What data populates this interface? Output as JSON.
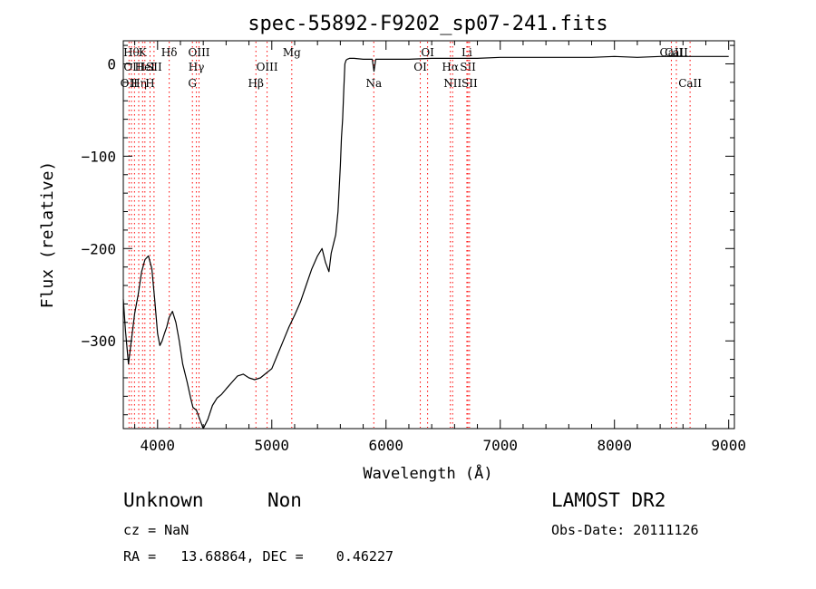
{
  "chart_data": {
    "type": "line",
    "title": "spec-55892-F9202_sp07-241.fits",
    "xlabel": "Wavelength (Å)",
    "ylabel": "Flux (relative)",
    "xlim": [
      3700,
      9050
    ],
    "ylim": [
      -395,
      25
    ],
    "xticks": [
      4000,
      5000,
      6000,
      7000,
      8000,
      9000
    ],
    "yticks": [
      0,
      -100,
      -200,
      -300
    ],
    "grid": false,
    "series": [
      {
        "x": [
          3700,
          3720,
          3745,
          3770,
          3800,
          3830,
          3860,
          3890,
          3920,
          3950,
          3975,
          4000,
          4020,
          4040,
          4060,
          4080,
          4100,
          4130,
          4160,
          4190,
          4220,
          4260,
          4290,
          4310,
          4340,
          4370,
          4400,
          4440,
          4480,
          4520,
          4560,
          4600,
          4650,
          4700,
          4750,
          4800,
          4850,
          4900,
          4950,
          5000,
          5050,
          5100,
          5150,
          5200,
          5250,
          5300,
          5350,
          5400,
          5440,
          5470,
          5500,
          5520,
          5540,
          5560,
          5580,
          5600,
          5610,
          5620,
          5630,
          5640,
          5650,
          5660,
          5680,
          5720,
          5800,
          5880,
          5895,
          5910,
          6000,
          6200,
          6400,
          6600,
          6800,
          7000,
          7200,
          7400,
          7600,
          7800,
          8000,
          8200,
          8400,
          8500,
          8600,
          8700,
          8800,
          8900,
          9000
        ],
        "values": [
          -255,
          -290,
          -325,
          -300,
          -270,
          -250,
          -225,
          -212,
          -208,
          -222,
          -255,
          -292,
          -305,
          -300,
          -292,
          -285,
          -275,
          -268,
          -280,
          -300,
          -325,
          -345,
          -362,
          -372,
          -375,
          -385,
          -395,
          -385,
          -370,
          -362,
          -358,
          -352,
          -345,
          -338,
          -336,
          -340,
          -342,
          -340,
          -335,
          -330,
          -315,
          -300,
          -285,
          -272,
          -258,
          -240,
          -222,
          -208,
          -200,
          -215,
          -225,
          -205,
          -195,
          -185,
          -160,
          -110,
          -80,
          -60,
          -30,
          0,
          4,
          5,
          6,
          6,
          5,
          5,
          -8,
          5,
          5,
          5,
          6,
          6,
          6,
          7,
          7,
          7,
          7,
          7,
          8,
          7,
          8,
          8,
          8,
          8,
          8,
          8,
          8
        ]
      }
    ],
    "line_markers": [
      {
        "x": 3750,
        "label": "OII",
        "row": 2
      },
      {
        "x": 3771,
        "label": "Hθ",
        "row": 0
      },
      {
        "x": 3798,
        "label": "OIII",
        "row": 1
      },
      {
        "x": 3835,
        "label": "Hη",
        "row": 2
      },
      {
        "x": 3869,
        "label": "K",
        "row": 0
      },
      {
        "x": 3889,
        "label": "HeI",
        "row": 1
      },
      {
        "x": 3934,
        "label": "H",
        "row": 2
      },
      {
        "x": 3969,
        "label": "SII",
        "row": 1
      },
      {
        "x": 4102,
        "label": "Hδ",
        "row": 0
      },
      {
        "x": 4305,
        "label": "G",
        "row": 2
      },
      {
        "x": 4340,
        "label": "Hγ",
        "row": 1
      },
      {
        "x": 4363,
        "label": "OIII",
        "row": 0
      },
      {
        "x": 4861,
        "label": "Hβ",
        "row": 2
      },
      {
        "x": 4959,
        "label": "OIII",
        "row": 1
      },
      {
        "x": 5175,
        "label": "Mg",
        "row": 0
      },
      {
        "x": 5893,
        "label": "Na",
        "row": 2
      },
      {
        "x": 6300,
        "label": "OI",
        "row": 1
      },
      {
        "x": 6364,
        "label": "OI",
        "row": 0
      },
      {
        "x": 6563,
        "label": "Hα",
        "row": 1
      },
      {
        "x": 6583,
        "label": "NII",
        "row": 2
      },
      {
        "x": 6708,
        "label": "Li",
        "row": 0
      },
      {
        "x": 6717,
        "label": "SII",
        "row": 1
      },
      {
        "x": 6731,
        "label": "SII",
        "row": 2
      },
      {
        "x": 8498,
        "label": "CaII",
        "row": 0
      },
      {
        "x": 8542,
        "label": "CaII",
        "row": 0
      },
      {
        "x": 8662,
        "label": "CaII",
        "row": 2
      }
    ]
  },
  "info": {
    "class": "Unknown",
    "subclass": "Non",
    "survey": "LAMOST DR2",
    "cz": "cz = NaN",
    "obs_date": "Obs-Date: 20111126",
    "radec": "RA =   13.68864, DEC =    0.46227"
  },
  "colors": {
    "line_marker": "#ff0000",
    "spectrum": "#000000",
    "axes": "#000000"
  }
}
